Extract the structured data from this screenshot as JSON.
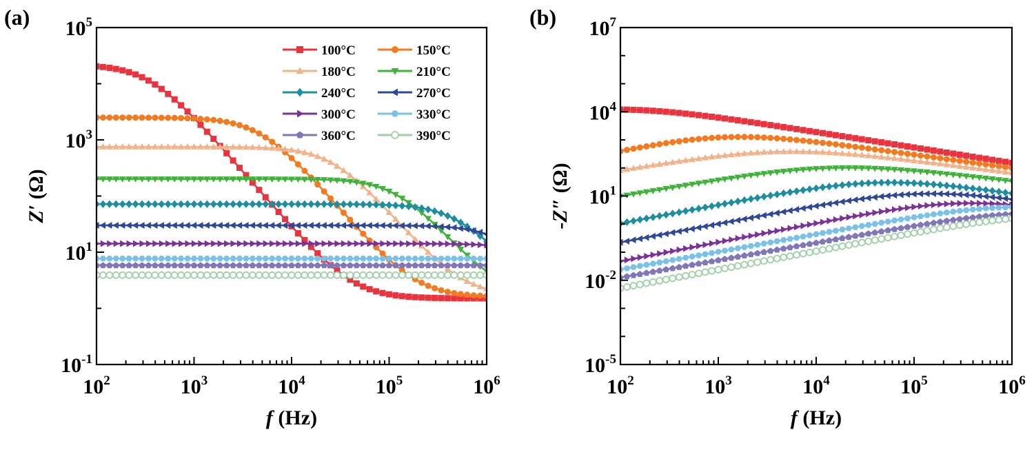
{
  "chart_data": [
    {
      "type": "line",
      "panel_label": "(a)",
      "xscale": "log",
      "yscale": "log",
      "xlim": [
        100,
        1000000
      ],
      "ylim": [
        0.1,
        100000
      ],
      "xlabel": {
        "italic": "f",
        "rest": " (Hz)"
      },
      "ylabel": {
        "italic": "Z′",
        "rest": " (Ω)"
      },
      "xticks": [
        {
          "base": "10",
          "exp": "2",
          "value": 100
        },
        {
          "base": "10",
          "exp": "3",
          "value": 1000
        },
        {
          "base": "10",
          "exp": "4",
          "value": 10000
        },
        {
          "base": "10",
          "exp": "5",
          "value": 100000
        },
        {
          "base": "10",
          "exp": "6",
          "value": 1000000
        }
      ],
      "yticks": [
        {
          "base": "10",
          "exp": "-1",
          "value": 0.1
        },
        {
          "base": "10",
          "exp": "1",
          "value": 10
        },
        {
          "base": "10",
          "exp": "3",
          "value": 1000
        },
        {
          "base": "10",
          "exp": "5",
          "value": 100000
        }
      ],
      "legend": {
        "position": "top-right",
        "columns": 2
      },
      "series": [
        {
          "name": "100°C",
          "color": "#e8343f",
          "marker": "square",
          "R": 22000,
          "tau": 0.00045,
          "alpha": 1.0,
          "Rinf": 1.5
        },
        {
          "name": "150°C",
          "color": "#f47a20",
          "marker": "circle",
          "R": 2500,
          "tau": 3.3e-05,
          "alpha": 1.0,
          "Rinf": 1.6
        },
        {
          "name": "180°C",
          "color": "#f0b38a",
          "marker": "triangle-up",
          "R": 750,
          "tau": 6e-06,
          "alpha": 1.0,
          "Rinf": 1.7
        },
        {
          "name": "210°C",
          "color": "#3fb23a",
          "marker": "triangle-down",
          "R": 200,
          "tau": 1.3e-06,
          "alpha": 1.0,
          "Rinf": 1.6
        },
        {
          "name": "240°C",
          "color": "#1c8ea0",
          "marker": "diamond",
          "R": 70,
          "tau": 3.2e-07,
          "alpha": 1.0,
          "Rinf": 1.8
        },
        {
          "name": "270°C",
          "color": "#2f4896",
          "marker": "triangle-left",
          "R": 28,
          "tau": 1.1e-07,
          "alpha": 1.0,
          "Rinf": 2.0
        },
        {
          "name": "300°C",
          "color": "#7b3196",
          "marker": "triangle-right",
          "R": 12,
          "tau": 4.5e-08,
          "alpha": 1.0,
          "Rinf": 2.2
        },
        {
          "name": "330°C",
          "color": "#79c1e6",
          "marker": "hexagon",
          "R": 5.3,
          "tau": 1.6e-08,
          "alpha": 1.0,
          "Rinf": 2.4
        },
        {
          "name": "360°C",
          "color": "#8077b6",
          "marker": "pentagon",
          "R": 3.3,
          "tau": 5e-09,
          "alpha": 1.0,
          "Rinf": 2.5
        },
        {
          "name": "390°C",
          "color": "#9fd0a5",
          "marker": "circle-open",
          "R": 2.0,
          "tau": 1.5e-09,
          "alpha": 1.0,
          "Rinf": 1.9
        }
      ]
    },
    {
      "type": "line",
      "panel_label": "(b)",
      "xscale": "log",
      "yscale": "log",
      "xlim": [
        100,
        1000000
      ],
      "ylim": [
        1e-05,
        10000000
      ],
      "xlabel": {
        "italic": "f",
        "rest": " (Hz)"
      },
      "ylabel": {
        "prefix": "-",
        "italic": "Z″",
        "rest": " (Ω)"
      },
      "xticks": [
        {
          "base": "10",
          "exp": "2",
          "value": 100
        },
        {
          "base": "10",
          "exp": "3",
          "value": 1000
        },
        {
          "base": "10",
          "exp": "4",
          "value": 10000
        },
        {
          "base": "10",
          "exp": "5",
          "value": 100000
        },
        {
          "base": "10",
          "exp": "6",
          "value": 1000000
        }
      ],
      "yticks": [
        {
          "base": "10",
          "exp": "-5",
          "value": 1e-05
        },
        {
          "base": "10",
          "exp": "-2",
          "value": 0.01
        },
        {
          "base": "10",
          "exp": "1",
          "value": 10
        },
        {
          "base": "10",
          "exp": "4",
          "value": 10000
        },
        {
          "base": "10",
          "exp": "7",
          "value": 10000000
        }
      ],
      "series": [
        {
          "name": "100°C",
          "color": "#e8343f",
          "marker": "square",
          "A": 12000,
          "fc": 100,
          "a": 0.5,
          "b": 0.55
        },
        {
          "name": "150°C",
          "color": "#f47a20",
          "marker": "circle",
          "A": 1250,
          "fc": 1200,
          "a": 0.72,
          "b": 0.48
        },
        {
          "name": "180°C",
          "color": "#f0b38a",
          "marker": "triangle-up",
          "A": 380,
          "fc": 4500,
          "a": 0.58,
          "b": 0.45
        },
        {
          "name": "210°C",
          "color": "#3fb23a",
          "marker": "triangle-down",
          "A": 100,
          "fc": 15000,
          "a": 0.6,
          "b": 0.42
        },
        {
          "name": "240°C",
          "color": "#1c8ea0",
          "marker": "diamond",
          "A": 30,
          "fc": 45000,
          "a": 0.66,
          "b": 0.5
        },
        {
          "name": "270°C",
          "color": "#2f4896",
          "marker": "triangle-left",
          "A": 12,
          "fc": 120000,
          "a": 0.66,
          "b": 0.5
        },
        {
          "name": "300°C",
          "color": "#7b3196",
          "marker": "triangle-right",
          "A": 5.5,
          "fc": 300000,
          "a": 0.68,
          "b": 0.5
        },
        {
          "name": "330°C",
          "color": "#79c1e6",
          "marker": "hexagon",
          "A": 4.0,
          "fc": 1000000,
          "a": 0.63,
          "b": 0.5
        },
        {
          "name": "360°C",
          "color": "#8077b6",
          "marker": "pentagon",
          "A": 2.4,
          "fc": 1500000,
          "a": 0.62,
          "b": 0.5
        },
        {
          "name": "390°C",
          "color": "#9fd0a5",
          "marker": "circle-open",
          "A": 1.8,
          "fc": 2000000,
          "a": 0.66,
          "b": 0.5
        }
      ]
    }
  ]
}
